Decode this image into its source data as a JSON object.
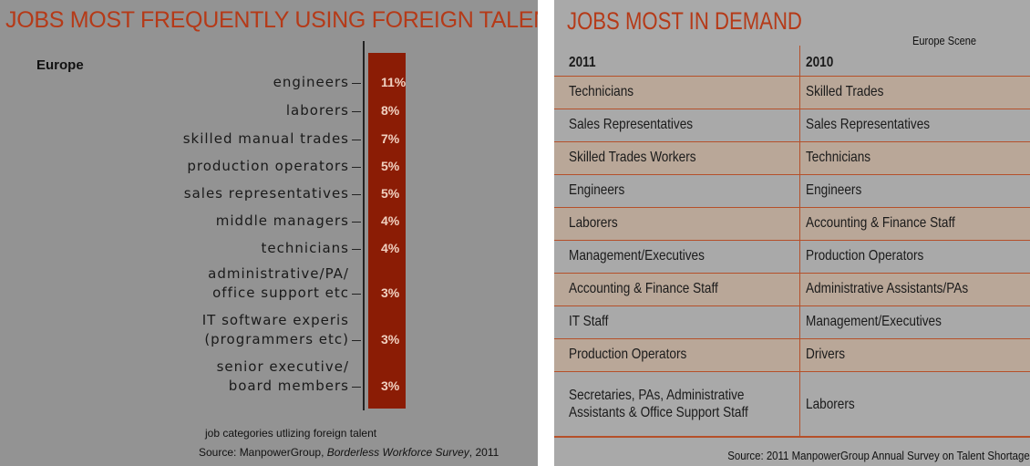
{
  "left": {
    "title": "JOBS MOST FREQUENTLY USING FOREIGN TALENT",
    "region": "Europe",
    "items": [
      {
        "label": [
          "engineers"
        ],
        "value": "11%"
      },
      {
        "label": [
          "laborers"
        ],
        "value": "8%"
      },
      {
        "label": [
          "skilled manual trades"
        ],
        "value": "7%"
      },
      {
        "label": [
          "production operators"
        ],
        "value": "5%"
      },
      {
        "label": [
          "sales representatives"
        ],
        "value": "5%"
      },
      {
        "label": [
          "middle managers"
        ],
        "value": "4%"
      },
      {
        "label": [
          "technicians"
        ],
        "value": "4%"
      },
      {
        "label": [
          "administrative/PA/",
          "office support etc"
        ],
        "value": "3%"
      },
      {
        "label": [
          "IT software experis",
          "(programmers etc)"
        ],
        "value": "3%"
      },
      {
        "label": [
          "senior executive/",
          "board members"
        ],
        "value": "3%"
      }
    ],
    "caption": "job categories utlizing foreign talent",
    "source": {
      "prefix": "Source: ManpowerGroup, ",
      "italic": "Borderless Workforce Survey",
      "suffix": ", 2011"
    }
  },
  "right": {
    "title": "JOBS MOST IN DEMAND",
    "subtitle": "Europe Scene",
    "table": {
      "header": [
        "2011",
        "2010"
      ],
      "rows": [
        [
          "Technicians",
          "Skilled Trades"
        ],
        [
          "Sales Representatives",
          "Sales Representatives"
        ],
        [
          "Skilled Trades Workers",
          "Technicians"
        ],
        [
          "Engineers",
          "Engineers"
        ],
        [
          "Laborers",
          "Accounting & Finance Staff"
        ],
        [
          "Management/Executives",
          "Production Operators"
        ],
        [
          "Accounting & Finance Staff",
          "Administrative Assistants/PAs"
        ],
        [
          "IT Staff",
          "Management/Executives"
        ],
        [
          "Production Operators",
          "Drivers"
        ],
        [
          "Secretaries, PAs, Administrative Assistants & Office Support Staff",
          "Laborers"
        ]
      ]
    },
    "source": "Source:  2011 ManpowerGroup Annual Survey on Talent Shortage"
  }
}
